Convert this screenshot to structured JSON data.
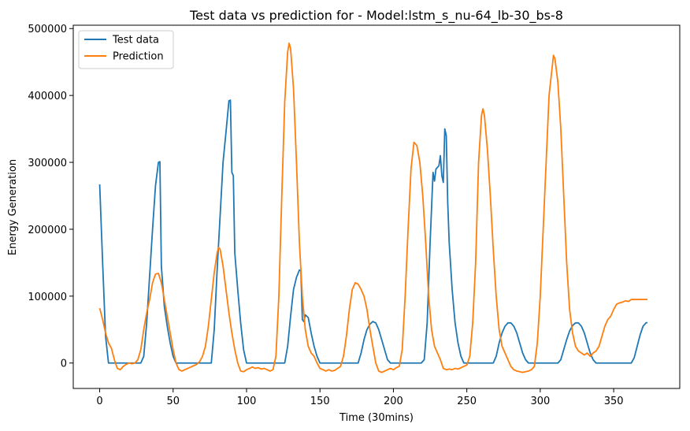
{
  "chart_data": {
    "type": "line",
    "title": "Test data vs prediction for - Model:lstm_s_nu-64_lb-30_bs-8",
    "xlabel": "Time (30mins)",
    "ylabel": "Energy Generation",
    "xlim": [
      -18,
      395
    ],
    "ylim": [
      -38000,
      505000
    ],
    "xticks": [
      0,
      50,
      100,
      150,
      200,
      250,
      300,
      350
    ],
    "yticks": [
      0,
      100000,
      200000,
      300000,
      400000,
      500000
    ],
    "xtick_labels": [
      "0",
      "50",
      "100",
      "150",
      "200",
      "250",
      "300",
      "350"
    ],
    "ytick_labels": [
      "0",
      "100000",
      "200000",
      "300000",
      "400000",
      "500000"
    ],
    "grid": false,
    "legend_position": "top-left",
    "series": [
      {
        "name": "Test data",
        "color": "#1f77b4",
        "points": [
          [
            0,
            267000
          ],
          [
            2,
            150000
          ],
          [
            4,
            40000
          ],
          [
            6,
            0
          ],
          [
            28,
            0
          ],
          [
            30,
            10000
          ],
          [
            32,
            60000
          ],
          [
            34,
            130000
          ],
          [
            36,
            200000
          ],
          [
            38,
            265000
          ],
          [
            40,
            300000
          ],
          [
            41,
            301000
          ],
          [
            42,
            145000
          ],
          [
            44,
            85000
          ],
          [
            46,
            55000
          ],
          [
            48,
            30000
          ],
          [
            50,
            10000
          ],
          [
            52,
            0
          ],
          [
            76,
            0
          ],
          [
            78,
            50000
          ],
          [
            80,
            140000
          ],
          [
            82,
            220000
          ],
          [
            84,
            300000
          ],
          [
            86,
            345000
          ],
          [
            88,
            392000
          ],
          [
            89,
            393000
          ],
          [
            90,
            285000
          ],
          [
            91,
            280000
          ],
          [
            92,
            165000
          ],
          [
            94,
            110000
          ],
          [
            96,
            60000
          ],
          [
            98,
            20000
          ],
          [
            100,
            0
          ],
          [
            126,
            0
          ],
          [
            128,
            25000
          ],
          [
            130,
            70000
          ],
          [
            132,
            110000
          ],
          [
            134,
            128000
          ],
          [
            136,
            139000
          ],
          [
            137,
            138000
          ],
          [
            138,
            65000
          ],
          [
            139,
            62000
          ],
          [
            140,
            72000
          ],
          [
            142,
            68000
          ],
          [
            144,
            45000
          ],
          [
            146,
            25000
          ],
          [
            148,
            10000
          ],
          [
            150,
            0
          ],
          [
            176,
            0
          ],
          [
            178,
            15000
          ],
          [
            180,
            35000
          ],
          [
            182,
            50000
          ],
          [
            184,
            58000
          ],
          [
            186,
            62000
          ],
          [
            188,
            60000
          ],
          [
            190,
            50000
          ],
          [
            192,
            35000
          ],
          [
            194,
            20000
          ],
          [
            196,
            5000
          ],
          [
            198,
            0
          ],
          [
            219,
            0
          ],
          [
            221,
            5000
          ],
          [
            223,
            60000
          ],
          [
            225,
            180000
          ],
          [
            227,
            285000
          ],
          [
            228,
            272000
          ],
          [
            229,
            290000
          ],
          [
            231,
            295000
          ],
          [
            232,
            310000
          ],
          [
            233,
            280000
          ],
          [
            234,
            270000
          ],
          [
            235,
            350000
          ],
          [
            236,
            340000
          ],
          [
            237,
            240000
          ],
          [
            238,
            180000
          ],
          [
            240,
            110000
          ],
          [
            242,
            60000
          ],
          [
            244,
            30000
          ],
          [
            246,
            10000
          ],
          [
            248,
            0
          ],
          [
            264,
            0
          ],
          [
            268,
            0
          ],
          [
            270,
            10000
          ],
          [
            272,
            30000
          ],
          [
            274,
            45000
          ],
          [
            276,
            55000
          ],
          [
            278,
            60000
          ],
          [
            280,
            60000
          ],
          [
            282,
            55000
          ],
          [
            284,
            45000
          ],
          [
            286,
            30000
          ],
          [
            288,
            15000
          ],
          [
            290,
            5000
          ],
          [
            292,
            0
          ],
          [
            312,
            0
          ],
          [
            314,
            5000
          ],
          [
            316,
            20000
          ],
          [
            318,
            35000
          ],
          [
            320,
            48000
          ],
          [
            322,
            56000
          ],
          [
            324,
            60000
          ],
          [
            326,
            60000
          ],
          [
            328,
            55000
          ],
          [
            330,
            45000
          ],
          [
            332,
            30000
          ],
          [
            334,
            15000
          ],
          [
            336,
            5000
          ],
          [
            338,
            0
          ],
          [
            362,
            0
          ],
          [
            364,
            8000
          ],
          [
            366,
            25000
          ],
          [
            368,
            42000
          ],
          [
            370,
            55000
          ],
          [
            372,
            60000
          ],
          [
            373,
            60500
          ]
        ]
      },
      {
        "name": "Prediction",
        "color": "#ff7f0e",
        "points": [
          [
            0,
            82000
          ],
          [
            2,
            65000
          ],
          [
            4,
            45000
          ],
          [
            6,
            30000
          ],
          [
            8,
            22000
          ],
          [
            10,
            5000
          ],
          [
            12,
            -8000
          ],
          [
            14,
            -10000
          ],
          [
            16,
            -5000
          ],
          [
            18,
            -2000
          ],
          [
            20,
            0
          ],
          [
            22,
            -1000
          ],
          [
            24,
            0
          ],
          [
            26,
            5000
          ],
          [
            28,
            20000
          ],
          [
            30,
            50000
          ],
          [
            32,
            75000
          ],
          [
            34,
            95000
          ],
          [
            36,
            120000
          ],
          [
            38,
            133000
          ],
          [
            40,
            134000
          ],
          [
            42,
            120000
          ],
          [
            44,
            95000
          ],
          [
            46,
            70000
          ],
          [
            48,
            45000
          ],
          [
            50,
            20000
          ],
          [
            52,
            0
          ],
          [
            54,
            -10000
          ],
          [
            56,
            -12000
          ],
          [
            58,
            -10000
          ],
          [
            60,
            -8000
          ],
          [
            62,
            -6000
          ],
          [
            64,
            -4000
          ],
          [
            66,
            -2000
          ],
          [
            68,
            2000
          ],
          [
            70,
            10000
          ],
          [
            72,
            25000
          ],
          [
            74,
            55000
          ],
          [
            76,
            95000
          ],
          [
            78,
            135000
          ],
          [
            80,
            165000
          ],
          [
            81,
            173000
          ],
          [
            82,
            170000
          ],
          [
            84,
            145000
          ],
          [
            86,
            110000
          ],
          [
            88,
            75000
          ],
          [
            90,
            45000
          ],
          [
            92,
            20000
          ],
          [
            94,
            0
          ],
          [
            96,
            -12000
          ],
          [
            98,
            -13000
          ],
          [
            100,
            -10000
          ],
          [
            102,
            -8000
          ],
          [
            104,
            -6000
          ],
          [
            106,
            -8000
          ],
          [
            108,
            -7000
          ],
          [
            110,
            -9000
          ],
          [
            112,
            -8000
          ],
          [
            114,
            -10000
          ],
          [
            116,
            -12000
          ],
          [
            118,
            -10000
          ],
          [
            120,
            10000
          ],
          [
            122,
            100000
          ],
          [
            124,
            250000
          ],
          [
            126,
            390000
          ],
          [
            128,
            465000
          ],
          [
            129,
            478000
          ],
          [
            130,
            470000
          ],
          [
            132,
            410000
          ],
          [
            134,
            300000
          ],
          [
            136,
            180000
          ],
          [
            138,
            100000
          ],
          [
            140,
            50000
          ],
          [
            142,
            25000
          ],
          [
            144,
            15000
          ],
          [
            146,
            10000
          ],
          [
            148,
            0
          ],
          [
            150,
            -8000
          ],
          [
            152,
            -10000
          ],
          [
            154,
            -12000
          ],
          [
            156,
            -10000
          ],
          [
            158,
            -12000
          ],
          [
            160,
            -11000
          ],
          [
            162,
            -8000
          ],
          [
            164,
            -5000
          ],
          [
            166,
            10000
          ],
          [
            168,
            40000
          ],
          [
            170,
            80000
          ],
          [
            172,
            110000
          ],
          [
            174,
            120000
          ],
          [
            176,
            118000
          ],
          [
            178,
            110000
          ],
          [
            180,
            100000
          ],
          [
            182,
            80000
          ],
          [
            184,
            50000
          ],
          [
            186,
            25000
          ],
          [
            188,
            0
          ],
          [
            190,
            -12000
          ],
          [
            192,
            -14000
          ],
          [
            194,
            -12000
          ],
          [
            196,
            -10000
          ],
          [
            198,
            -8000
          ],
          [
            200,
            -10000
          ],
          [
            202,
            -7000
          ],
          [
            204,
            -5000
          ],
          [
            206,
            20000
          ],
          [
            208,
            100000
          ],
          [
            210,
            200000
          ],
          [
            212,
            290000
          ],
          [
            214,
            330000
          ],
          [
            216,
            325000
          ],
          [
            218,
            300000
          ],
          [
            220,
            250000
          ],
          [
            222,
            180000
          ],
          [
            224,
            100000
          ],
          [
            226,
            50000
          ],
          [
            228,
            25000
          ],
          [
            230,
            15000
          ],
          [
            232,
            5000
          ],
          [
            234,
            -8000
          ],
          [
            236,
            -10000
          ],
          [
            238,
            -9000
          ],
          [
            240,
            -10000
          ],
          [
            242,
            -8000
          ],
          [
            244,
            -9000
          ],
          [
            246,
            -7000
          ],
          [
            248,
            -5000
          ],
          [
            250,
            -3000
          ],
          [
            252,
            10000
          ],
          [
            254,
            60000
          ],
          [
            256,
            150000
          ],
          [
            258,
            300000
          ],
          [
            260,
            370000
          ],
          [
            261,
            380000
          ],
          [
            262,
            370000
          ],
          [
            264,
            320000
          ],
          [
            266,
            250000
          ],
          [
            268,
            170000
          ],
          [
            270,
            100000
          ],
          [
            272,
            50000
          ],
          [
            274,
            25000
          ],
          [
            276,
            15000
          ],
          [
            278,
            5000
          ],
          [
            280,
            -5000
          ],
          [
            282,
            -10000
          ],
          [
            284,
            -12000
          ],
          [
            286,
            -13000
          ],
          [
            288,
            -14000
          ],
          [
            290,
            -13000
          ],
          [
            292,
            -12000
          ],
          [
            294,
            -10000
          ],
          [
            296,
            -5000
          ],
          [
            298,
            30000
          ],
          [
            300,
            100000
          ],
          [
            302,
            200000
          ],
          [
            304,
            300000
          ],
          [
            306,
            400000
          ],
          [
            308,
            440000
          ],
          [
            309,
            460000
          ],
          [
            310,
            455000
          ],
          [
            312,
            420000
          ],
          [
            314,
            350000
          ],
          [
            316,
            250000
          ],
          [
            318,
            150000
          ],
          [
            320,
            80000
          ],
          [
            322,
            45000
          ],
          [
            324,
            25000
          ],
          [
            326,
            18000
          ],
          [
            328,
            15000
          ],
          [
            330,
            12000
          ],
          [
            332,
            15000
          ],
          [
            334,
            10000
          ],
          [
            336,
            15000
          ],
          [
            338,
            18000
          ],
          [
            340,
            25000
          ],
          [
            342,
            40000
          ],
          [
            344,
            55000
          ],
          [
            346,
            65000
          ],
          [
            348,
            70000
          ],
          [
            350,
            80000
          ],
          [
            352,
            88000
          ],
          [
            354,
            90000
          ],
          [
            356,
            91000
          ],
          [
            358,
            93000
          ],
          [
            360,
            92000
          ],
          [
            362,
            95000
          ],
          [
            373,
            95000
          ]
        ]
      }
    ]
  }
}
